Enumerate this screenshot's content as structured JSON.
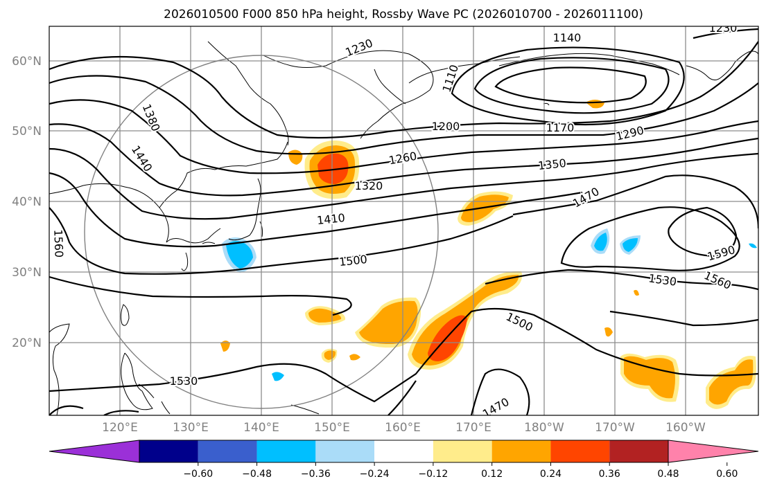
{
  "title": "2026010500 F000 850 hPa height, Rossby Wave PC (2026010700 - 2026011100)",
  "lat_labels": [
    "60°N",
    "50°N",
    "40°N",
    "30°N",
    "20°N"
  ],
  "lon_labels": [
    "120°E",
    "130°E",
    "140°E",
    "150°E",
    "160°E",
    "170°E",
    "180°W",
    "170°W",
    "160°W"
  ],
  "contour_labels": [
    "1230",
    "1140",
    "1110",
    "1230",
    "1380",
    "1200",
    "1170",
    "1290",
    "1440",
    "1260",
    "1350",
    "1320",
    "1470",
    "1410",
    "1560",
    "1500",
    "1590",
    "1530",
    "1560",
    "1500",
    "1530",
    "1470"
  ],
  "colorbar": {
    "ticks": [
      "−0.60",
      "−0.48",
      "−0.36",
      "−0.24",
      "−0.12",
      "0.12",
      "0.24",
      "0.36",
      "0.48",
      "0.60"
    ],
    "colors": [
      "#9b30d8",
      "#00008b",
      "#3a5fcd",
      "#00bfff",
      "#aadcf8",
      "#ffffff",
      "#ffec8b",
      "#ffa500",
      "#ff4500",
      "#b22222",
      "#ff82ab"
    ]
  },
  "colors": {
    "positive_light": "#ffec8b",
    "positive_mid": "#ffa500",
    "positive_strong": "#ff4500",
    "negative_mid": "#00bfff",
    "negative_light": "#aadcf8"
  }
}
